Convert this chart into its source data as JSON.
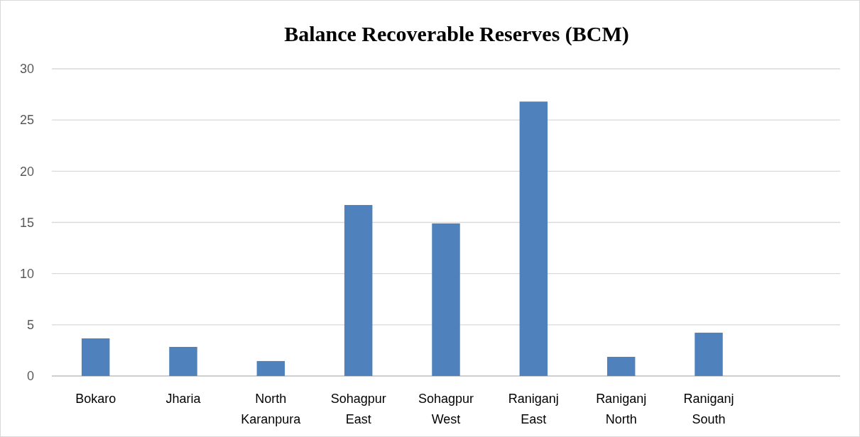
{
  "chart_data": {
    "type": "bar",
    "title": "Balance Recoverable Reserves (BCM)",
    "categories": [
      "Bokaro",
      "Jharia",
      "North Karanpura",
      "Sohagpur East",
      "Sohagpur West",
      "Raniganj East",
      "Raniganj North",
      "Raniganj South",
      null
    ],
    "values": [
      3.67,
      2.84,
      1.46,
      16.7,
      14.9,
      26.8,
      1.87,
      4.23,
      null
    ],
    "color": "#4f81bd",
    "ylim": [
      0,
      30
    ],
    "yticks": [
      0,
      5,
      10,
      15,
      20,
      25,
      30
    ],
    "grid": "y"
  }
}
